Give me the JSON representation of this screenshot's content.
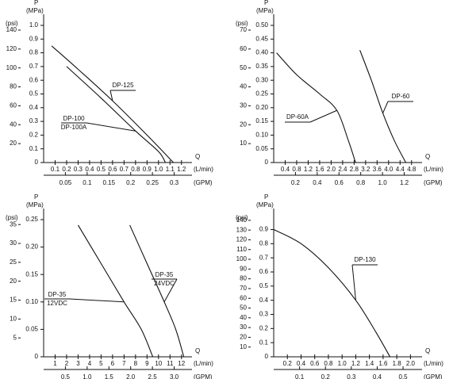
{
  "chart_data": [
    {
      "type": "line",
      "y_label": "P",
      "y_unit": "(MPa)",
      "y2_unit": "(psi)",
      "x_label": "Q",
      "x_unit": "(L/min)",
      "x2_unit": "(GPM)",
      "xlim": [
        0,
        1.25
      ],
      "xticks": [
        0.1,
        0.2,
        0.3,
        0.4,
        0.5,
        0.6,
        0.7,
        0.8,
        0.9,
        {
          "value": 1,
          "label": "1.0"
        },
        1.1,
        1.2
      ],
      "x2lim": [
        0,
        0.33
      ],
      "x2ticks": [
        0.05,
        0.1,
        0.15,
        0.2,
        0.25,
        0.3
      ],
      "ylim": [
        0,
        1.0
      ],
      "yticks": [
        0,
        0.1,
        0.2,
        0.3,
        0.4,
        0.5,
        0.6,
        0.7,
        0.8,
        0.9,
        {
          "value": 1,
          "label": "1.0"
        }
      ],
      "y2lim": [
        0,
        145
      ],
      "y2ticks": [
        20,
        40,
        60,
        80,
        100,
        120,
        140
      ],
      "series": [
        {
          "name": "DP-125",
          "color": "#111111",
          "x": [
            0.07,
            0.3,
            0.6,
            0.9,
            1.13
          ],
          "values": [
            0.85,
            0.68,
            0.45,
            0.2,
            0
          ]
        },
        {
          "name": "DP-100",
          "subname": "DP-100A",
          "color": "#111111",
          "x": [
            0.2,
            0.5,
            0.8,
            1.0,
            1.06
          ],
          "values": [
            0.7,
            0.47,
            0.23,
            0.08,
            0
          ]
        }
      ]
    },
    {
      "type": "line",
      "y_label": "P",
      "y_unit": "(MPa)",
      "y2_unit": "(psi)",
      "x_label": "Q",
      "x_unit": "(L/min)",
      "x2_unit": "(GPM)",
      "xlim": [
        0,
        5.0
      ],
      "xticks": [
        0.4,
        0.8,
        1.2,
        1.6,
        {
          "value": 2,
          "label": "2.0"
        },
        2.4,
        2.8,
        3.2,
        3.6,
        {
          "value": 4,
          "label": "4.0"
        },
        4.4,
        4.8
      ],
      "x2lim": [
        0,
        1.32
      ],
      "x2ticks": [
        0.2,
        0.4,
        0.6,
        0.8,
        {
          "value": 1,
          "label": "1.0"
        },
        1.2
      ],
      "ylim": [
        0,
        0.5
      ],
      "yticks": [
        0,
        0.05,
        {
          "value": 0.1,
          "label": "0.10"
        },
        0.15,
        {
          "value": 0.2,
          "label": "0.20"
        },
        0.25,
        {
          "value": 0.3,
          "label": "0.30"
        },
        0.35,
        {
          "value": 0.4,
          "label": "0.40"
        },
        0.45,
        {
          "value": 0.5,
          "label": "0.50"
        }
      ],
      "y2lim": [
        0,
        72.5
      ],
      "y2ticks": [
        10,
        20,
        30,
        40,
        50,
        60,
        70
      ],
      "series": [
        {
          "name": "DP-60A",
          "color": "#111111",
          "x": [
            0.1,
            0.8,
            1.6,
            2.2,
            2.6,
            2.85
          ],
          "values": [
            0.4,
            0.32,
            0.25,
            0.19,
            0.08,
            0
          ]
        },
        {
          "name": "DP-60",
          "color": "#111111",
          "x": [
            3.0,
            3.4,
            3.8,
            4.2,
            4.6
          ],
          "values": [
            0.41,
            0.3,
            0.18,
            0.08,
            0
          ]
        }
      ]
    },
    {
      "type": "line",
      "y_label": "P",
      "y_unit": "(MPa)",
      "y2_unit": "(psi)",
      "x_label": "Q",
      "x_unit": "(L/min)",
      "x2_unit": "(GPM)",
      "xlim": [
        0,
        12.5
      ],
      "xticks": [
        1,
        2,
        3,
        4,
        5,
        6,
        7,
        8,
        9,
        10,
        11,
        12
      ],
      "x2lim": [
        0,
        3.3
      ],
      "x2ticks": [
        0.5,
        {
          "value": 1,
          "label": "1.0"
        },
        1.5,
        {
          "value": 2,
          "label": "2.0"
        },
        2.5,
        {
          "value": 3,
          "label": "3.0"
        }
      ],
      "ylim": [
        0,
        0.25
      ],
      "yticks": [
        0,
        0.05,
        {
          "value": 0.1,
          "label": "0.10"
        },
        0.15,
        {
          "value": 0.2,
          "label": "0.20"
        },
        0.25
      ],
      "y2lim": [
        0,
        36.3
      ],
      "y2ticks": [
        5,
        10,
        15,
        20,
        25,
        30,
        35
      ],
      "series": [
        {
          "name": "DP-35",
          "subname": "12VDC",
          "color": "#111111",
          "x": [
            3,
            5,
            7,
            8.5,
            9.5
          ],
          "values": [
            0.24,
            0.17,
            0.1,
            0.05,
            0
          ]
        },
        {
          "name": "DP-35",
          "subname": "24VDC",
          "color": "#111111",
          "x": [
            7.5,
            9,
            10.5,
            11.5,
            12.2
          ],
          "values": [
            0.24,
            0.17,
            0.1,
            0.05,
            0
          ]
        }
      ]
    },
    {
      "type": "line",
      "y_label": "P",
      "y_unit": "(MPa)",
      "y2_unit": "(psi)",
      "x_label": "Q",
      "x_unit": "(L/min)",
      "x2_unit": "(GPM)",
      "xlim": [
        0,
        2.1
      ],
      "xticks": [
        0.2,
        0.4,
        0.6,
        0.8,
        {
          "value": 1,
          "label": "1.0"
        },
        1.2,
        1.4,
        1.6,
        1.8,
        {
          "value": 2,
          "label": "2.0"
        }
      ],
      "x2lim": [
        0,
        0.555
      ],
      "x2ticks": [
        0.1,
        0.2,
        0.3,
        0.4,
        0.5
      ],
      "ylim": [
        0,
        0.97
      ],
      "yticks": [
        0,
        0.1,
        0.2,
        0.3,
        0.4,
        0.5,
        0.6,
        0.7,
        0.8,
        0.9
      ],
      "y2lim": [
        0,
        140.7
      ],
      "y2ticks": [
        10,
        20,
        30,
        40,
        50,
        60,
        70,
        80,
        90,
        100,
        110,
        120,
        130,
        140
      ],
      "series": [
        {
          "name": "DP-130",
          "color": "#111111",
          "x": [
            0,
            0.4,
            0.8,
            1.2,
            1.5,
            1.7
          ],
          "values": [
            0.9,
            0.8,
            0.63,
            0.4,
            0.17,
            0
          ]
        }
      ]
    }
  ]
}
